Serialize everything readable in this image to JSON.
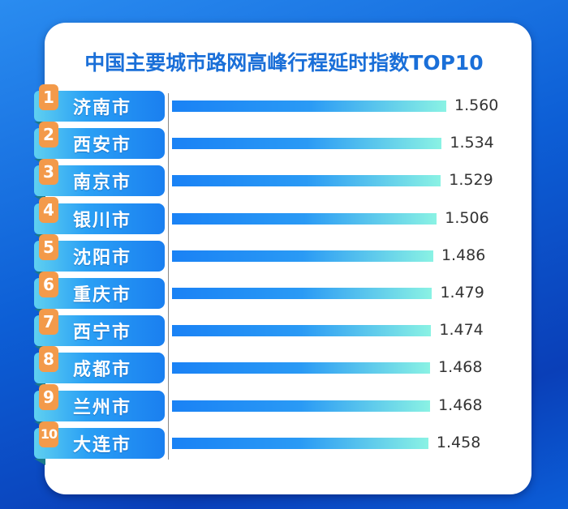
{
  "chart_data": {
    "type": "bar",
    "orientation": "horizontal",
    "title": "中国主要城市路网高峰行程延时指数TOP10",
    "categories": [
      "济南市",
      "西安市",
      "南京市",
      "银川市",
      "沈阳市",
      "重庆市",
      "西宁市",
      "成都市",
      "兰州市",
      "大连市"
    ],
    "ranks": [
      "1",
      "2",
      "3",
      "4",
      "5",
      "6",
      "7",
      "8",
      "9",
      "10"
    ],
    "values": [
      1.56,
      1.534,
      1.529,
      1.506,
      1.486,
      1.479,
      1.474,
      1.468,
      1.468,
      1.458
    ],
    "value_labels": [
      "1.560",
      "1.534",
      "1.529",
      "1.506",
      "1.486",
      "1.479",
      "1.474",
      "1.468",
      "1.468",
      "1.458"
    ],
    "xlim": [
      0,
      1.56
    ],
    "grid": false,
    "colors": {
      "bar_start": "#1a82f5",
      "bar_end": "#8af2e4",
      "badge": "#f39a4a",
      "title": "#1a6fd8"
    }
  }
}
